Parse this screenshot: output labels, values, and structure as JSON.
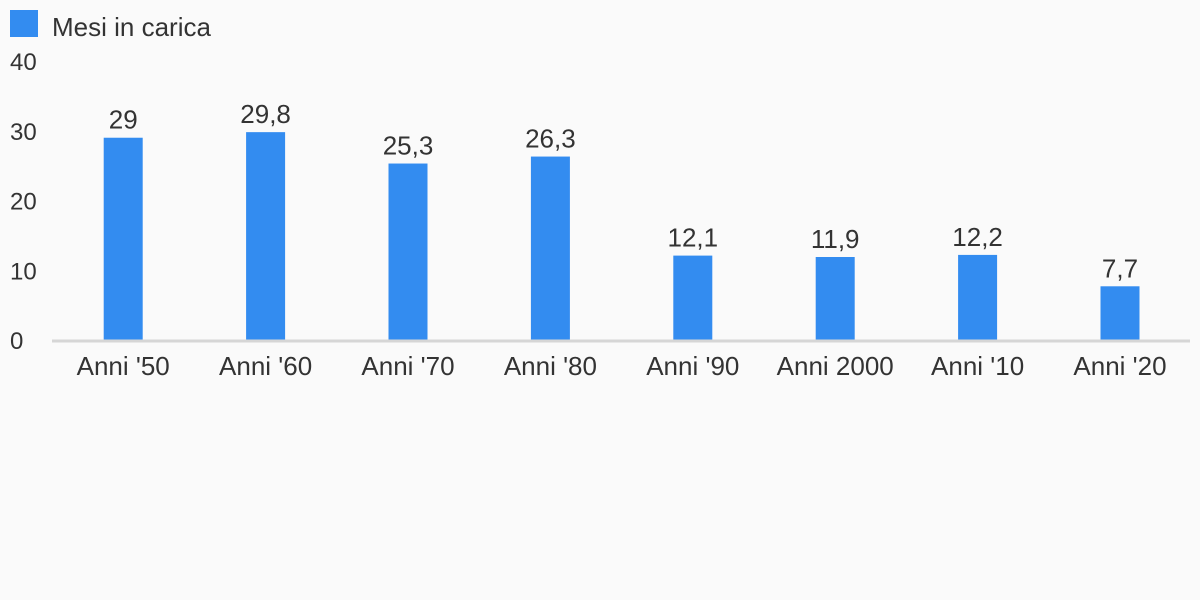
{
  "chart_data": {
    "type": "bar",
    "categories": [
      "Anni '50",
      "Anni '60",
      "Anni '70",
      "Anni '80",
      "Anni '90",
      "Anni 2000",
      "Anni '10",
      "Anni '20"
    ],
    "series": [
      {
        "name": "Mesi in carica",
        "values": [
          29,
          29.8,
          25.3,
          26.3,
          12.1,
          11.9,
          12.2,
          7.7
        ],
        "labels": [
          "29",
          "29,8",
          "25,3",
          "26,3",
          "12,1",
          "11,9",
          "12,2",
          "7,7"
        ],
        "color": "#338cf0"
      }
    ],
    "ylim": [
      0,
      40
    ],
    "yticks": [
      0,
      10,
      20,
      30,
      40
    ],
    "title": "",
    "xlabel": "",
    "ylabel": "",
    "legend_position": "top-left",
    "grid": false,
    "axis_color": "#d6d6d6"
  }
}
